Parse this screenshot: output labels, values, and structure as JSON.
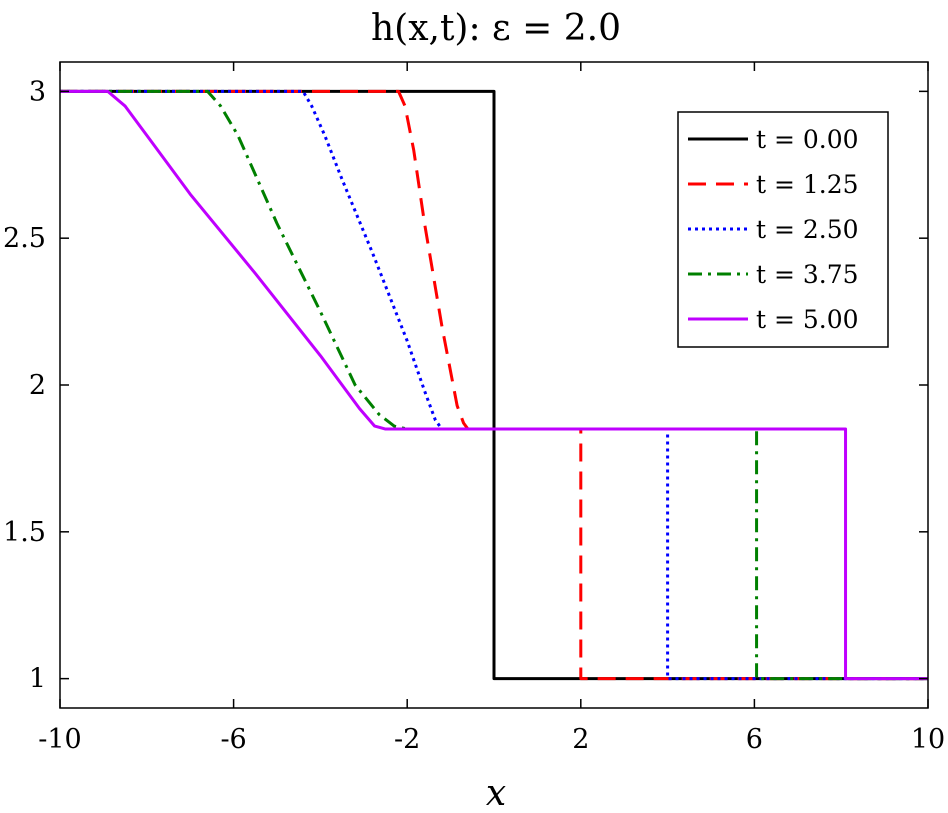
{
  "chart_data": {
    "type": "line",
    "title": "h(x,t): ε = 2.0",
    "xlabel": "x",
    "ylabel": "",
    "xlim": [
      -10,
      10
    ],
    "ylim": [
      0.9,
      3.1
    ],
    "xticks": [
      -10,
      -6,
      -2,
      2,
      6,
      10
    ],
    "xtick_labels": [
      "-10",
      "-6",
      "-2",
      "2",
      "6",
      "10"
    ],
    "yticks": [
      1,
      1.5,
      2,
      2.5,
      3
    ],
    "ytick_labels": [
      "1",
      "1.5",
      "2",
      "2.5",
      "3"
    ],
    "grid": false,
    "legend_position": "top-right",
    "series": [
      {
        "name": "t = 0.00",
        "color": "#000000",
        "dash": "solid",
        "x": [
          -10,
          0,
          0,
          0,
          10
        ],
        "y": [
          3,
          3,
          1.85,
          1,
          1
        ]
      },
      {
        "name": "t = 1.25",
        "color": "#ff0000",
        "dash": "dashed",
        "x": [
          -10,
          -2.2,
          -2.05,
          -1.85,
          -1.6,
          -1.2,
          -0.85,
          -0.7,
          -0.6,
          2,
          2,
          10
        ],
        "y": [
          3,
          3,
          2.95,
          2.8,
          2.55,
          2.2,
          1.93,
          1.87,
          1.85,
          1.85,
          1,
          1
        ]
      },
      {
        "name": "t = 2.50",
        "color": "#0000ff",
        "dash": "dotted",
        "x": [
          -10,
          -4.4,
          -4.2,
          -3.9,
          -3.5,
          -2.8,
          -2.0,
          -1.6,
          -1.35,
          -1.2,
          4,
          4,
          10
        ],
        "y": [
          3,
          3,
          2.95,
          2.85,
          2.7,
          2.45,
          2.15,
          1.98,
          1.88,
          1.85,
          1.85,
          1,
          1
        ]
      },
      {
        "name": "t = 3.75",
        "color": "#008000",
        "dash": "dashdot",
        "x": [
          -10,
          -6.6,
          -6.3,
          -5.9,
          -5.0,
          -4.0,
          -3.2,
          -2.65,
          -2.3,
          -2.0,
          6.05,
          6.05,
          10
        ],
        "y": [
          3,
          3,
          2.95,
          2.85,
          2.55,
          2.25,
          2.0,
          1.9,
          1.86,
          1.85,
          1.85,
          1,
          1
        ]
      },
      {
        "name": "t = 5.00",
        "color": "#bf00ff",
        "dash": "solid",
        "x": [
          -10,
          -8.9,
          -8.5,
          -8.0,
          -7.0,
          -5.5,
          -4.0,
          -3.1,
          -2.75,
          -2.5,
          8.1,
          8.1,
          10
        ],
        "y": [
          3,
          3,
          2.95,
          2.85,
          2.65,
          2.38,
          2.1,
          1.92,
          1.86,
          1.85,
          1.85,
          1,
          1
        ]
      }
    ]
  }
}
